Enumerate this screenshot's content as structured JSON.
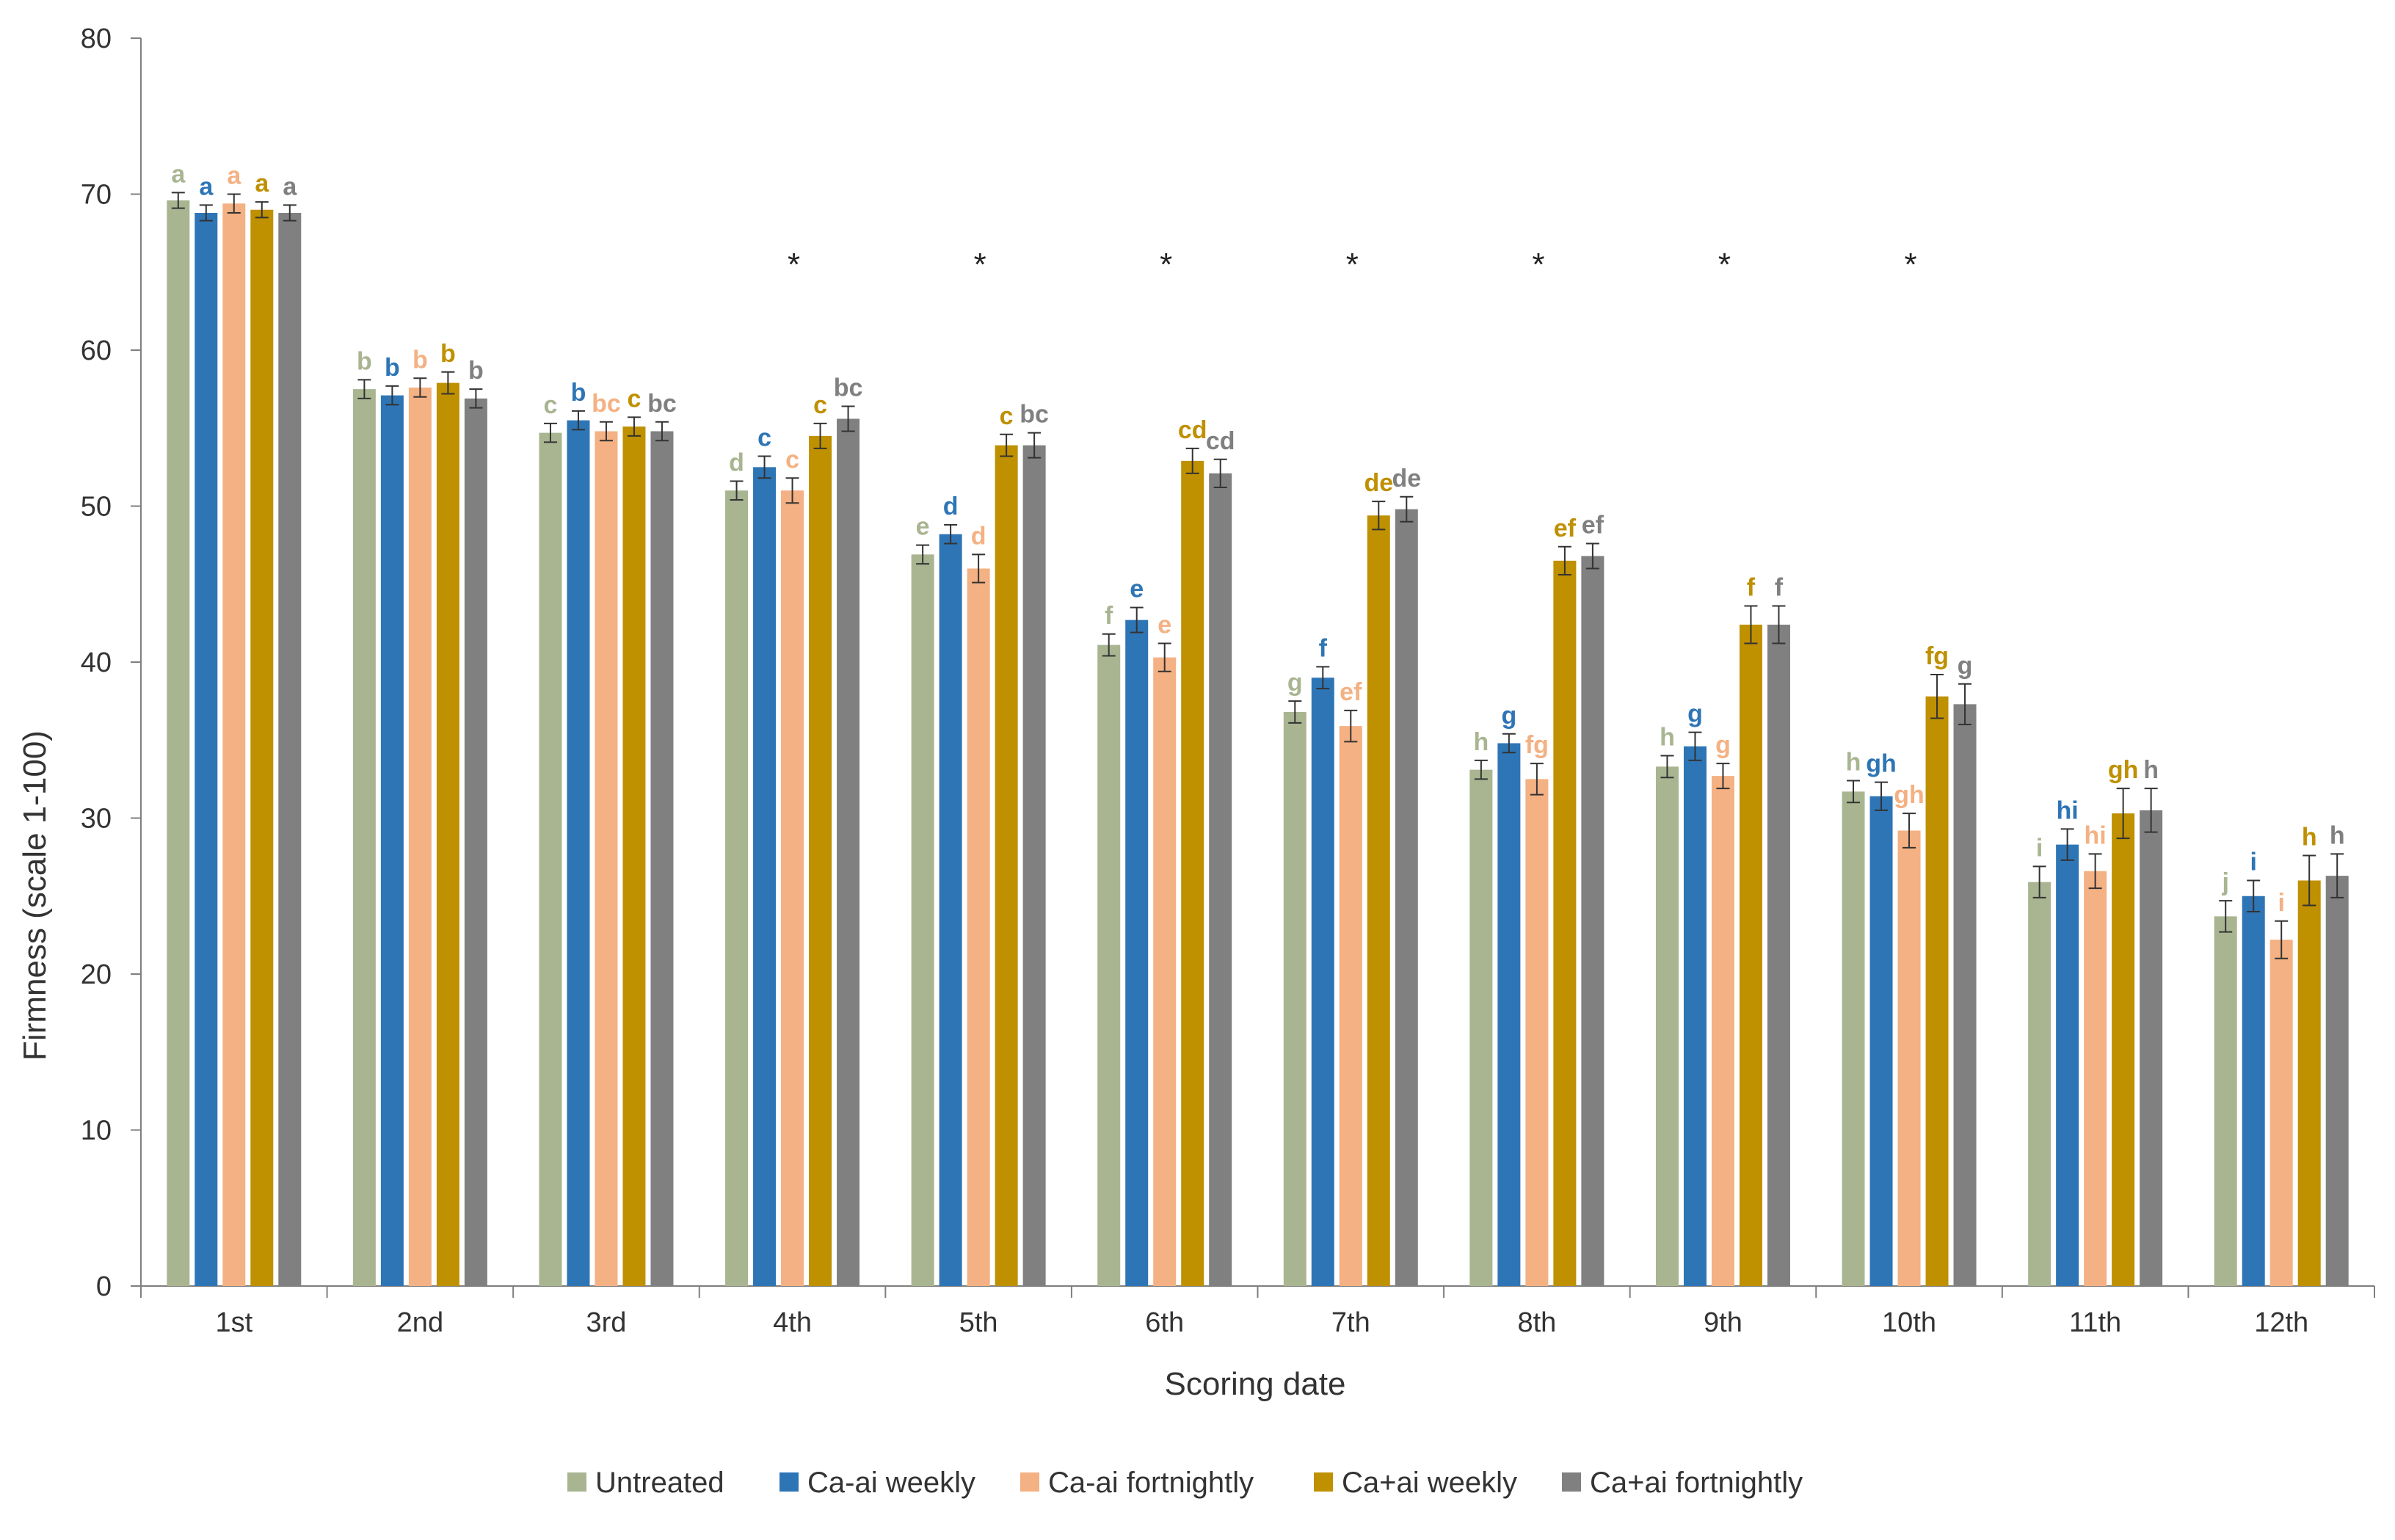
{
  "chart_data": {
    "type": "bar",
    "title": "",
    "xlabel": "Scoring date",
    "ylabel": "Firmness (scale 1-100)",
    "ylim": [
      0,
      80
    ],
    "yticks": [
      0,
      10,
      20,
      30,
      40,
      50,
      60,
      70,
      80
    ],
    "grid": false,
    "legend_position": "bottom",
    "categories": [
      "1st",
      "2nd",
      "3rd",
      "4th",
      "5th",
      "6th",
      "7th",
      "8th",
      "9th",
      "10th",
      "11th",
      "12th"
    ],
    "series": [
      {
        "name": "Untreated",
        "color": "#A9B591",
        "values": [
          69.6,
          57.5,
          54.7,
          51.0,
          46.9,
          41.1,
          36.8,
          33.1,
          33.3,
          31.7,
          25.9,
          23.7
        ],
        "errors": [
          0.5,
          0.6,
          0.6,
          0.6,
          0.6,
          0.7,
          0.7,
          0.6,
          0.7,
          0.7,
          1.0,
          1.0
        ],
        "labels": [
          "a",
          "b",
          "c",
          "d",
          "e",
          "f",
          "g",
          "h",
          "h",
          "h",
          "i",
          "j"
        ]
      },
      {
        "name": "Ca-ai weekly",
        "color": "#2E75B6",
        "values": [
          68.8,
          57.1,
          55.5,
          52.5,
          48.2,
          42.7,
          39.0,
          34.8,
          34.6,
          31.4,
          28.3,
          25.0
        ],
        "errors": [
          0.5,
          0.6,
          0.6,
          0.7,
          0.6,
          0.8,
          0.7,
          0.6,
          0.9,
          0.9,
          1.0,
          1.0
        ],
        "labels": [
          "a",
          "b",
          "b",
          "c",
          "d",
          "e",
          "f",
          "g",
          "g",
          "gh",
          "hi",
          "i"
        ]
      },
      {
        "name": "Ca-ai fortnightly",
        "color": "#F4B183",
        "values": [
          69.4,
          57.6,
          54.8,
          51.0,
          46.0,
          40.3,
          35.9,
          32.5,
          32.7,
          29.2,
          26.6,
          22.2
        ],
        "errors": [
          0.6,
          0.6,
          0.6,
          0.8,
          0.9,
          0.9,
          1.0,
          1.0,
          0.8,
          1.1,
          1.1,
          1.2
        ],
        "labels": [
          "a",
          "b",
          "bc",
          "c",
          "d",
          "e",
          "ef",
          "fg",
          "g",
          "gh",
          "hi",
          "i"
        ]
      },
      {
        "name": "Ca+ai weekly",
        "color": "#BF9000",
        "values": [
          69.0,
          57.9,
          55.1,
          54.5,
          53.9,
          52.9,
          49.4,
          46.5,
          42.4,
          37.8,
          30.3,
          26.0
        ],
        "errors": [
          0.5,
          0.7,
          0.6,
          0.8,
          0.7,
          0.8,
          0.9,
          0.9,
          1.2,
          1.4,
          1.6,
          1.6
        ],
        "labels": [
          "a",
          "b",
          "c",
          "c",
          "c",
          "cd",
          "de",
          "ef",
          "f",
          "fg",
          "gh",
          "h"
        ]
      },
      {
        "name": "Ca+ai fortnightly",
        "color": "#808080",
        "values": [
          68.8,
          56.9,
          54.8,
          55.6,
          53.9,
          52.1,
          49.8,
          46.8,
          42.4,
          37.3,
          30.5,
          26.3
        ],
        "errors": [
          0.5,
          0.6,
          0.6,
          0.8,
          0.8,
          0.9,
          0.8,
          0.8,
          1.2,
          1.3,
          1.4,
          1.4
        ],
        "labels": [
          "a",
          "b",
          "bc",
          "bc",
          "bc",
          "cd",
          "de",
          "ef",
          "f",
          "g",
          "h",
          "h"
        ]
      }
    ],
    "significance_marker": "*",
    "significance_categories": [
      "4th",
      "5th",
      "6th",
      "7th",
      "8th",
      "9th",
      "10th"
    ]
  }
}
